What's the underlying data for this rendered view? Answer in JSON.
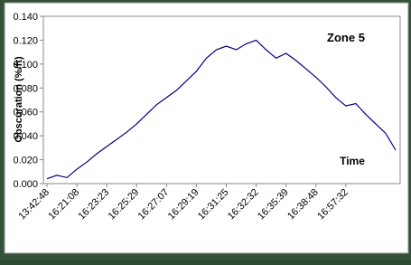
{
  "chart_data": {
    "type": "line",
    "ylabel": "Obscuration (%/ft)",
    "annotations": [
      "Zone 5",
      "Time"
    ],
    "categories": [
      "13:42:48",
      null,
      null,
      "16:21:08",
      null,
      null,
      "16:23:23",
      null,
      null,
      "16:25:29",
      null,
      null,
      "16:27:07",
      null,
      null,
      "16:29:19",
      null,
      null,
      "16:31:25",
      null,
      null,
      "16:32:32",
      null,
      null,
      "16:35:39",
      null,
      null,
      "16:38:48",
      null,
      null,
      "16:57:32",
      null,
      null,
      null,
      null,
      null
    ],
    "series": [
      {
        "color": "#000080",
        "values": [
          0.004,
          0.007,
          0.005,
          0.012,
          0.018,
          0.025,
          0.031,
          0.037,
          0.043,
          0.05,
          0.058,
          0.066,
          0.072,
          0.078,
          0.086,
          0.094,
          0.105,
          0.112,
          0.115,
          0.112,
          0.117,
          0.12,
          0.112,
          0.105,
          0.109,
          0.103,
          0.096,
          0.089,
          0.081,
          0.072,
          0.065,
          0.067,
          0.058,
          0.05,
          0.042,
          0.028
        ]
      }
    ],
    "ylim": [
      0,
      0.14
    ],
    "yticks": [
      {
        "value": 0,
        "label": "0.000"
      },
      {
        "value": 0.02,
        "label": "0.020"
      },
      {
        "value": 0.04,
        "label": "0.040"
      },
      {
        "value": 0.06,
        "label": "0.060"
      },
      {
        "value": 0.08,
        "label": "0.080"
      },
      {
        "value": 0.1,
        "label": "0.100"
      },
      {
        "value": 0.12,
        "label": "0.120"
      },
      {
        "value": 0.14,
        "label": "0.140"
      }
    ],
    "grid": false
  }
}
